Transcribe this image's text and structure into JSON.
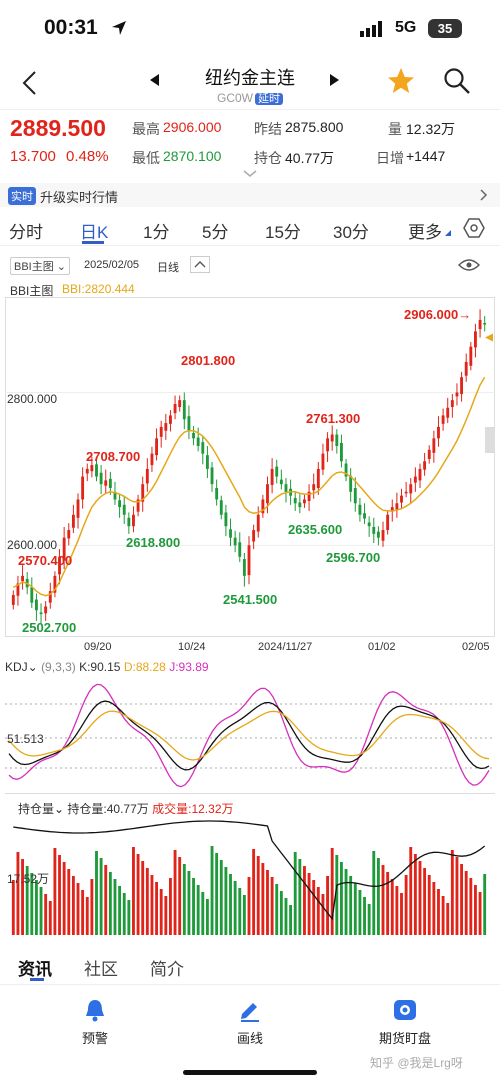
{
  "status": {
    "time": "00:31",
    "network": "5G",
    "battery": "35"
  },
  "header": {
    "title": "纽约金主连",
    "code": "GC0W",
    "delay_tag": "延时"
  },
  "quote": {
    "price": "2889.500",
    "change": "13.700",
    "change_pct": "0.48%",
    "high_label": "最高",
    "high": "2906.000",
    "low_label": "最低",
    "low": "2870.100",
    "prev_label": "昨结",
    "prev": "2875.800",
    "oi_label": "持仓",
    "oi": "40.77万",
    "vol_label": "量",
    "vol": "12.32万",
    "daily_label": "日增",
    "daily": "+1447"
  },
  "banner": {
    "tag": "实时",
    "text": "升级实时行情"
  },
  "tabs": [
    "分时",
    "日K",
    "1分",
    "5分",
    "15分",
    "30分",
    "更多"
  ],
  "chart_header": {
    "indicator": "BBI主图",
    "date": "2025/02/05",
    "period": "日线"
  },
  "main_legend": {
    "name": "BBI主图",
    "value": "BBI:2820.444"
  },
  "price_axis": [
    "2800.000",
    "2600.000"
  ],
  "annotations": {
    "a1": "2906.000→",
    "a2": "2801.800",
    "a3": "2761.300",
    "a4": "2708.700",
    "a5": "2618.800",
    "a6": "2635.600",
    "a7": "2596.700",
    "a8": "2570.400",
    "a9": "2541.500",
    "a10": "2502.700"
  },
  "x_axis": [
    "09/20",
    "10/24",
    "2024/11/27",
    "01/02",
    "02/05"
  ],
  "kdj": {
    "name": "KDJ",
    "params": "(9,3,3)",
    "k": "K:90.15",
    "d": "D:88.28",
    "j": "J:93.89",
    "level": "51.513"
  },
  "oi_panel": {
    "name": "持仓量",
    "oi": "持仓量:40.77万",
    "volume": "成交量:12.32万",
    "level": "17.52万"
  },
  "info_tabs": [
    "资讯",
    "社区",
    "简介"
  ],
  "nav": {
    "alert": "预警",
    "draw": "画线",
    "watch": "期货盯盘"
  },
  "watermark": "知乎 @我是Lrg呀",
  "colors": {
    "up": "#e0241a",
    "down": "#1f9a3b",
    "accent": "#2f5fc7",
    "bbi": "#e6a817"
  },
  "chart_data": {
    "type": "candlestick",
    "title": "",
    "annotated_points": [
      {
        "label": "2906.000",
        "value": 2906.0
      },
      {
        "label": "2801.800",
        "value": 2801.8
      },
      {
        "label": "2761.300",
        "value": 2761.3
      },
      {
        "label": "2708.700",
        "value": 2708.7
      },
      {
        "label": "2618.800",
        "value": 2618.8
      },
      {
        "label": "2635.600",
        "value": 2635.6
      },
      {
        "label": "2596.700",
        "value": 2596.7
      },
      {
        "label": "2570.400",
        "value": 2570.4
      },
      {
        "label": "2541.500",
        "value": 2541.5
      },
      {
        "label": "2502.700",
        "value": 2502.7
      }
    ],
    "x_ticks": [
      "09/20",
      "10/24",
      "2024/11/27",
      "01/02",
      "02/05"
    ],
    "y_ticks": [
      "2800.000",
      "2600.000"
    ],
    "close": [
      2535,
      2550,
      2560,
      2545,
      2525,
      2515,
      2510,
      2520,
      2540,
      2560,
      2585,
      2610,
      2620,
      2640,
      2660,
      2690,
      2700,
      2705,
      2690,
      2680,
      2685,
      2675,
      2660,
      2650,
      2640,
      2625,
      2640,
      2660,
      2680,
      2700,
      2720,
      2740,
      2755,
      2760,
      2770,
      2785,
      2790,
      2765,
      2750,
      2740,
      2730,
      2720,
      2700,
      2680,
      2660,
      2640,
      2625,
      2610,
      2600,
      2585,
      2560,
      2600,
      2620,
      2640,
      2660,
      2680,
      2700,
      2690,
      2680,
      2670,
      2665,
      2655,
      2650,
      2660,
      2670,
      2680,
      2700,
      2720,
      2740,
      2745,
      2730,
      2710,
      2690,
      2670,
      2655,
      2640,
      2635,
      2625,
      2615,
      2610,
      2620,
      2640,
      2650,
      2655,
      2665,
      2670,
      2680,
      2690,
      2700,
      2710,
      2725,
      2740,
      2755,
      2770,
      2780,
      2790,
      2800,
      2820,
      2840,
      2860,
      2880,
      2895,
      2889
    ],
    "bbi": [
      2545,
      2548,
      2552,
      2550,
      2546,
      2540,
      2536,
      2534,
      2536,
      2542,
      2552,
      2565,
      2578,
      2592,
      2606,
      2622,
      2637,
      2650,
      2658,
      2664,
      2668,
      2670,
      2669,
      2667,
      2664,
      2660,
      2657,
      2657,
      2660,
      2666,
      2674,
      2684,
      2696,
      2708,
      2720,
      2732,
      2742,
      2748,
      2750,
      2750,
      2747,
      2743,
      2736,
      2728,
      2718,
      2707,
      2696,
      2685,
      2674,
      2663,
      2650,
      2644,
      2642,
      2643,
      2646,
      2651,
      2658,
      2663,
      2667,
      2669,
      2670,
      2670,
      2668,
      2667,
      2667,
      2668,
      2671,
      2677,
      2684,
      2691,
      2695,
      2696,
      2694,
      2690,
      2684,
      2677,
      2670,
      2663,
      2656,
      2650,
      2646,
      2645,
      2645,
      2646,
      2648,
      2651,
      2655,
      2660,
      2666,
      2672,
      2679,
      2687,
      2696,
      2706,
      2716,
      2726,
      2737,
      2750,
      2764,
      2779,
      2795,
      2810,
      2820
    ]
  }
}
